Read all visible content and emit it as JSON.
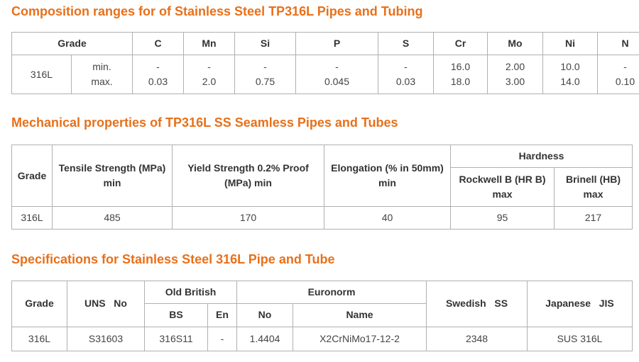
{
  "composition": {
    "title": "Composition ranges for of Stainless Steel TP316L Pipes and Tubing",
    "headers": [
      "Grade",
      "C",
      "Mn",
      "Si",
      "P",
      "S",
      "Cr",
      "Mo",
      "Ni",
      "N"
    ],
    "grade": "316L",
    "row_labels": [
      "min.",
      "max."
    ],
    "min": [
      "-",
      "-",
      "-",
      "-",
      "-",
      "16.0",
      "2.00",
      "10.0",
      "-"
    ],
    "max": [
      "0.03",
      "2.0",
      "0.75",
      "0.045",
      "0.03",
      "18.0",
      "3.00",
      "14.0",
      "0.10"
    ]
  },
  "mechanical": {
    "title": "Mechanical properties of TP316L SS Seamless Pipes and Tubes",
    "headers": {
      "grade": "Grade",
      "tensile": "Tensile Strength (MPa) min",
      "yield": "Yield Strength 0.2% Proof (MPa) min",
      "elongation": "Elongation (% in 50mm) min",
      "hardness": "Hardness",
      "rockwell": "Rockwell B (HR B) max",
      "brinell": "Brinell (HB) max"
    },
    "row": {
      "grade": "316L",
      "tensile": "485",
      "yield": "170",
      "elongation": "40",
      "rockwell": "95",
      "brinell": "217"
    }
  },
  "specs": {
    "title": "Specifications for Stainless Steel 316L Pipe and Tube",
    "headers": {
      "grade": "Grade",
      "uns": "UNS   No",
      "old_british": "Old British",
      "bs": "BS",
      "en": "En",
      "euronorm": "Euronorm",
      "no": "No",
      "name": "Name",
      "swedish": "Swedish   SS",
      "japanese": "Japanese   JIS"
    },
    "row": {
      "grade": "316L",
      "uns": "S31603",
      "bs": "316S11",
      "en": "-",
      "no": "1.4404",
      "name": "X2CrNiMo17-12-2",
      "swedish": "2348",
      "japanese": "SUS 316L"
    }
  }
}
